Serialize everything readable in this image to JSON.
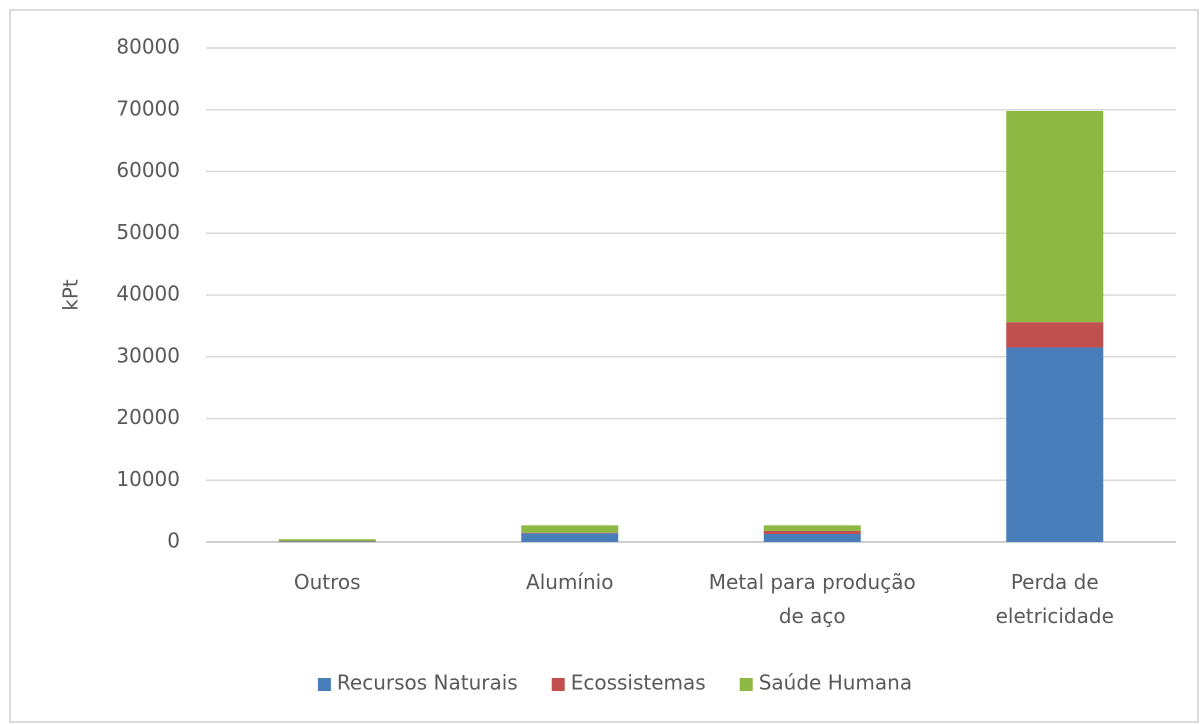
{
  "chart_data": {
    "type": "bar",
    "stacked": true,
    "ylabel": "kPt",
    "categories": [
      "Outros",
      "Alumínio",
      "Metal para produção de aço",
      "Perda de eletricidade"
    ],
    "series": [
      {
        "name": "Recursos Naturais",
        "color": "#4a7ebb",
        "values": [
          100,
          1400,
          1300,
          31500
        ]
      },
      {
        "name": "Ecossistemas",
        "color": "#c0504d",
        "values": [
          50,
          100,
          500,
          4100
        ]
      },
      {
        "name": "Saúde Humana",
        "color": "#8db843",
        "values": [
          300,
          1200,
          900,
          34200
        ]
      }
    ],
    "ylim": [
      0,
      80000
    ],
    "yticks": [
      0,
      10000,
      20000,
      30000,
      40000,
      50000,
      60000,
      70000,
      80000
    ],
    "grid": true,
    "legend": "bottom"
  }
}
